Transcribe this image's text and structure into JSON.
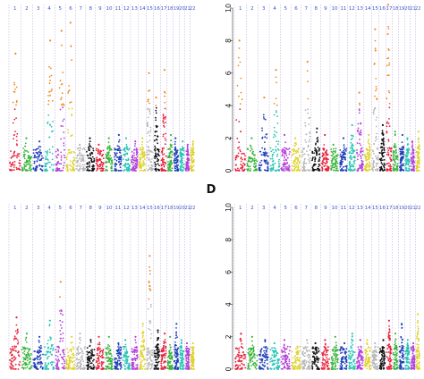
{
  "panel_label_d": "D",
  "chromosome_labels": [
    "1",
    "2",
    "3",
    "4",
    "5",
    "6",
    "7",
    "8",
    "9",
    "10",
    "11",
    "12",
    "13",
    "14",
    "15",
    "16",
    "17",
    "18",
    "19",
    "20",
    "21",
    "22"
  ],
  "colors": {
    "chromosomes": [
      "#e8213a",
      "#39b53a",
      "#1f3fb8",
      "#27c6b4",
      "#b33fd9",
      "#ded329",
      "#b8b8b8",
      "#111111",
      "#e8213a",
      "#39b53a",
      "#1f3fb8",
      "#27c6b4",
      "#b33fd9",
      "#ded329",
      "#b8b8b8",
      "#111111",
      "#e8213a",
      "#39b53a",
      "#1f3fb8",
      "#27c6b4",
      "#b33fd9",
      "#ded329"
    ],
    "significant": "#f08a1c",
    "label_text": "#3a55c6",
    "guide": "#b39ddb"
  },
  "chart_data": [
    {
      "type": "scatter",
      "title": "",
      "plot": "Manhattan plot",
      "chromosomes": [
        "1",
        "2",
        "3",
        "4",
        "5",
        "6",
        "7",
        "8",
        "9",
        "10",
        "11",
        "12",
        "13",
        "14",
        "15",
        "16",
        "17",
        "18",
        "19",
        "20",
        "21",
        "22"
      ],
      "peak_values_by_chromosome": [
        7.2,
        2.0,
        1.8,
        8.0,
        8.6,
        9.1,
        1.6,
        2.0,
        1.6,
        2.0,
        2.2,
        2.0,
        1.8,
        2.0,
        6.0,
        4.5,
        6.2,
        2.2,
        2.0,
        1.8,
        1.6,
        1.8
      ],
      "ylim": [
        0,
        10
      ],
      "y_ticks_shown": false
    },
    {
      "type": "scatter",
      "title": "",
      "plot": "Manhattan plot",
      "chromosomes": [
        "1",
        "2",
        "3",
        "4",
        "5",
        "6",
        "7",
        "8",
        "9",
        "10",
        "11",
        "12",
        "13",
        "14",
        "15",
        "16",
        "17",
        "18",
        "19",
        "20",
        "21",
        "22"
      ],
      "peak_values_by_chromosome": [
        8.0,
        2.0,
        4.5,
        6.2,
        2.2,
        2.0,
        6.7,
        2.6,
        2.2,
        1.6,
        2.0,
        2.8,
        4.8,
        2.2,
        8.7,
        2.8,
        10.2,
        2.4,
        2.2,
        2.0,
        1.8,
        2.4
      ],
      "ylim": [
        0,
        10
      ],
      "y_ticks": [
        0,
        2,
        4,
        6,
        8,
        10
      ]
    },
    {
      "type": "scatter",
      "title": "",
      "plot": "Manhattan plot",
      "chromosomes": [
        "1",
        "2",
        "3",
        "4",
        "5",
        "6",
        "7",
        "8",
        "9",
        "10",
        "11",
        "12",
        "13",
        "14",
        "15",
        "16",
        "17",
        "18",
        "19",
        "20",
        "21",
        "22"
      ],
      "peak_values_by_chromosome": [
        3.2,
        2.2,
        2.0,
        3.0,
        5.4,
        2.0,
        2.2,
        1.8,
        2.0,
        2.0,
        1.6,
        1.8,
        2.0,
        2.8,
        7.0,
        2.4,
        2.2,
        2.0,
        2.8,
        1.8,
        1.6,
        1.6
      ],
      "ylim": [
        0,
        10
      ],
      "y_ticks_shown": false
    },
    {
      "type": "scatter",
      "title": "",
      "plot": "Manhattan plot",
      "chromosomes": [
        "1",
        "2",
        "3",
        "4",
        "5",
        "6",
        "7",
        "8",
        "9",
        "10",
        "11",
        "12",
        "13",
        "14",
        "15",
        "16",
        "17",
        "18",
        "19",
        "20",
        "21",
        "22"
      ],
      "peak_values_by_chromosome": [
        2.2,
        2.0,
        1.8,
        1.6,
        1.8,
        1.4,
        1.8,
        1.6,
        1.8,
        2.0,
        1.6,
        2.2,
        1.8,
        1.8,
        1.6,
        1.8,
        3.0,
        2.2,
        2.8,
        1.8,
        1.6,
        3.4
      ],
      "ylim": [
        0,
        10
      ],
      "y_ticks": [
        0,
        2,
        4,
        6,
        8,
        10
      ]
    }
  ]
}
